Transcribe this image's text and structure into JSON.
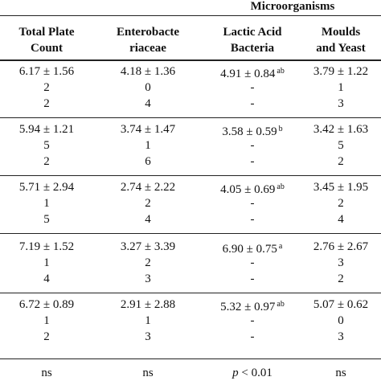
{
  "header": {
    "group_label": "Microorganisms",
    "columns": [
      {
        "line1": "Total Plate",
        "line2": "Count"
      },
      {
        "line1": "Enterobacte",
        "line2": "riaceae"
      },
      {
        "line1": "Lactic Acid",
        "line2": "Bacteria"
      },
      {
        "line1": "Moulds",
        "line2": "and Yeast"
      }
    ]
  },
  "groups": [
    {
      "rows": [
        [
          "6.17 ± 1.56",
          "4.18 ± 1.36",
          "4.91 ± 0.84",
          "3.79 ± 1.22"
        ],
        [
          "2",
          "0",
          "-",
          "1"
        ],
        [
          "2",
          "4",
          "-",
          "3"
        ]
      ],
      "lab_sup": "ab"
    },
    {
      "rows": [
        [
          "5.94 ± 1.21",
          "3.74 ± 1.47",
          "3.58 ± 0.59",
          "3.42 ± 1.63"
        ],
        [
          "5",
          "1",
          "-",
          "5"
        ],
        [
          "2",
          "6",
          "-",
          "2"
        ]
      ],
      "lab_sup": "b"
    },
    {
      "rows": [
        [
          "5.71 ± 2.94",
          "2.74 ± 2.22",
          "4.05 ± 0.69",
          "3.45 ± 1.95"
        ],
        [
          "1",
          "2",
          "-",
          "2"
        ],
        [
          "5",
          "4",
          "-",
          "4"
        ]
      ],
      "lab_sup": "ab"
    },
    {
      "rows": [
        [
          "7.19 ± 1.52",
          "3.27 ± 3.39",
          "6.90 ± 0.75",
          "2.76 ± 2.67"
        ],
        [
          "1",
          "2",
          "-",
          "3"
        ],
        [
          "4",
          "3",
          "-",
          "2"
        ]
      ],
      "lab_sup": "a"
    },
    {
      "rows": [
        [
          "6.72 ± 0.89",
          "2.91 ± 2.88",
          "5.32 ± 0.97",
          "5.07 ± 0.62"
        ],
        [
          "1",
          "1",
          "-",
          "0"
        ],
        [
          "2",
          "3",
          "-",
          "3"
        ]
      ],
      "lab_sup": "ab"
    }
  ],
  "footer": {
    "values": [
      "ns",
      "ns",
      "",
      "ns"
    ],
    "lab_p_symbol": "p",
    "lab_p_rest": " < 0.01"
  }
}
